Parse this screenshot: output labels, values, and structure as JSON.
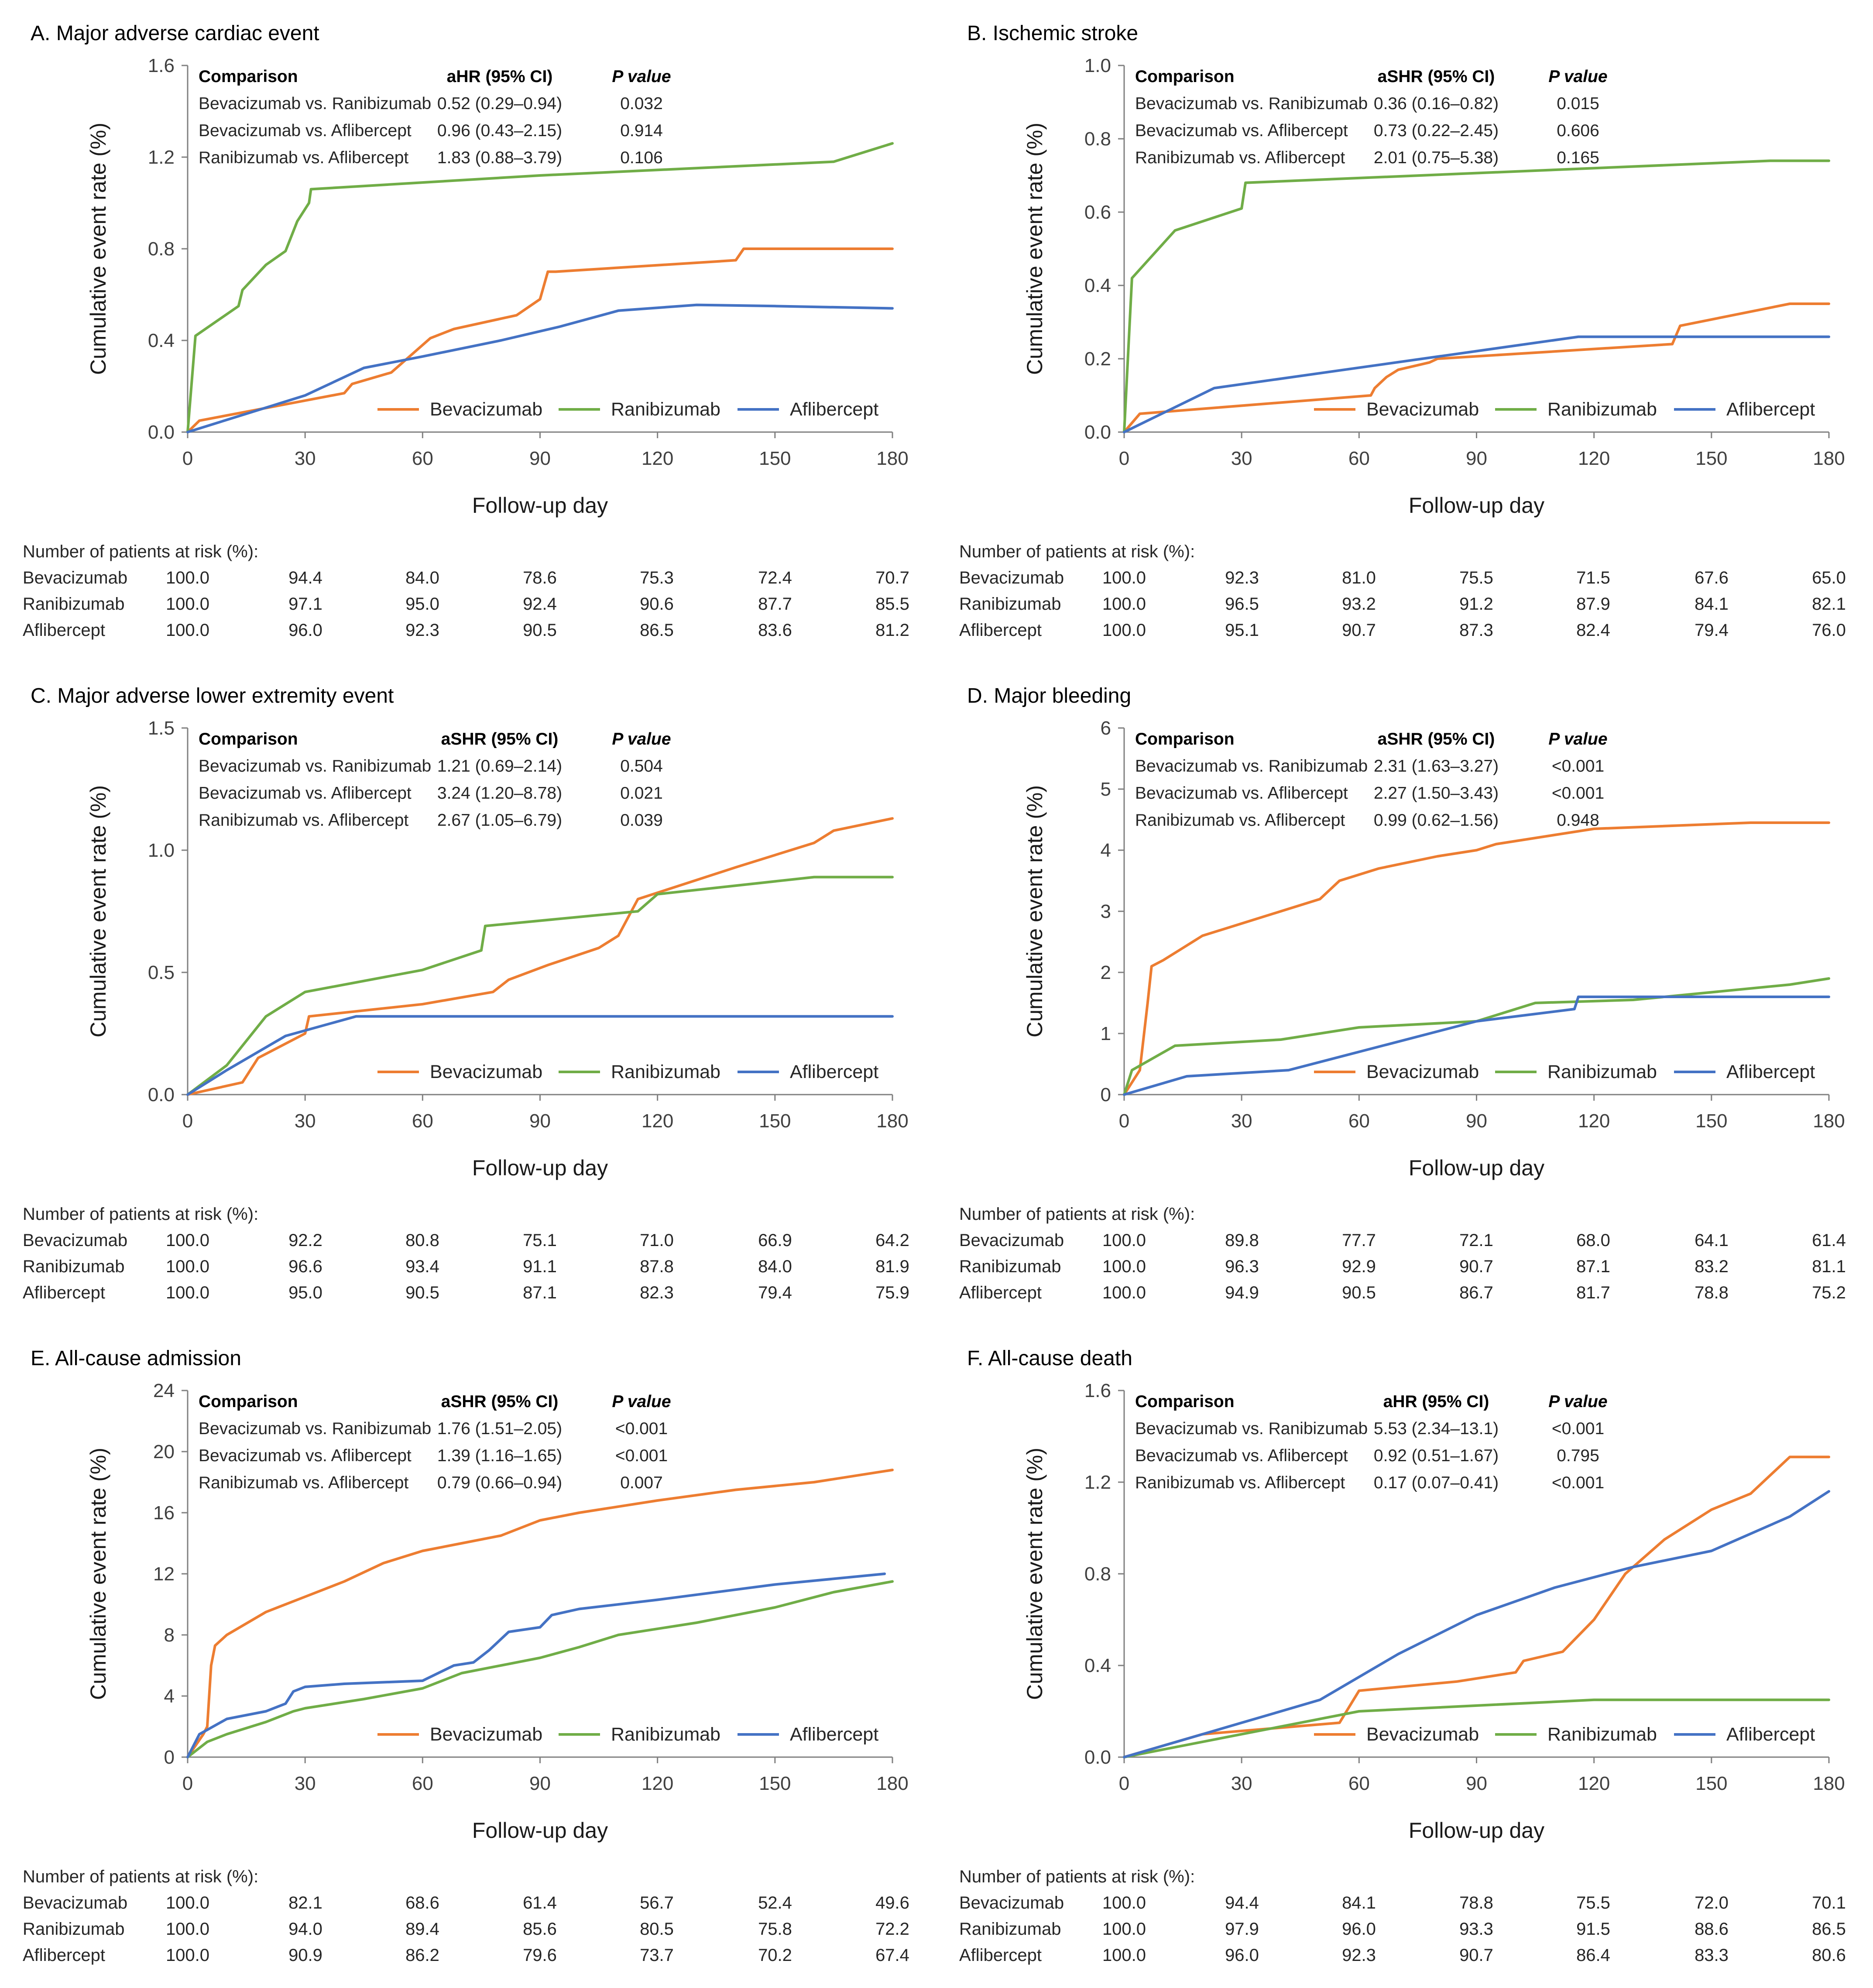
{
  "colors": {
    "Bevacizumab": "#ED7D31",
    "Ranibizumab": "#70AD47",
    "Aflibercept": "#4472C4",
    "axis": "#808080"
  },
  "common": {
    "xlabel": "Follow-up day",
    "ylabel": "Cumulative event rate (%)",
    "x_ticks": [
      "0",
      "30",
      "60",
      "90",
      "120",
      "150",
      "180"
    ],
    "risk_label": "Number of patients at risk (%):",
    "cmp_header": {
      "comparison": "Comparison",
      "p": "P value"
    }
  },
  "chart_data": [
    {
      "id": "A",
      "type": "line",
      "title": "A. Major adverse cardiac event",
      "xlabel": "Follow-up day",
      "ylabel": "Cumulative event rate (%)",
      "xlim": [
        0,
        180
      ],
      "ylim": [
        0,
        1.6
      ],
      "y_ticks": [
        "0.0",
        "0.4",
        "0.8",
        "1.2",
        "1.6"
      ],
      "stat_label": "aHR (95% CI)",
      "comparisons": [
        {
          "comparison": "Bevacizumab vs. Ranibizumab",
          "ci": "0.52 (0.29–0.94)",
          "p": "0.032"
        },
        {
          "comparison": "Bevacizumab vs. Aflibercept",
          "ci": "0.96 (0.43–2.15)",
          "p": "0.914"
        },
        {
          "comparison": "Ranibizumab vs. Aflibercept",
          "ci": "1.83 (0.88–3.79)",
          "p": "0.106"
        }
      ],
      "series": [
        {
          "name": "Bevacizumab",
          "x": [
            0,
            3,
            40,
            42,
            52,
            62,
            68,
            84,
            90,
            92,
            94,
            140,
            142,
            180
          ],
          "y": [
            0,
            0.05,
            0.17,
            0.21,
            0.26,
            0.41,
            0.45,
            0.51,
            0.58,
            0.7,
            0.7,
            0.75,
            0.8,
            0.8
          ]
        },
        {
          "name": "Ranibizumab",
          "x": [
            0,
            2,
            13,
            14,
            20,
            25,
            28,
            31,
            31.5,
            90,
            165,
            180
          ],
          "y": [
            0,
            0.42,
            0.55,
            0.62,
            0.73,
            0.79,
            0.92,
            1.0,
            1.06,
            1.12,
            1.18,
            1.26
          ]
        },
        {
          "name": "Aflibercept",
          "x": [
            0,
            30,
            45,
            60,
            80,
            95,
            110,
            130,
            150,
            180
          ],
          "y": [
            0,
            0.16,
            0.28,
            0.33,
            0.4,
            0.46,
            0.53,
            0.555,
            0.55,
            0.54
          ]
        }
      ],
      "risk": [
        {
          "name": "Bevacizumab",
          "values": [
            "100.0",
            "94.4",
            "84.0",
            "78.6",
            "75.3",
            "72.4",
            "70.7"
          ]
        },
        {
          "name": "Ranibizumab",
          "values": [
            "100.0",
            "97.1",
            "95.0",
            "92.4",
            "90.6",
            "87.7",
            "85.5"
          ]
        },
        {
          "name": "Aflibercept",
          "values": [
            "100.0",
            "96.0",
            "92.3",
            "90.5",
            "86.5",
            "83.6",
            "81.2"
          ]
        }
      ]
    },
    {
      "id": "B",
      "type": "line",
      "title": "B. Ischemic stroke",
      "xlabel": "Follow-up day",
      "ylabel": "Cumulative event rate (%)",
      "xlim": [
        0,
        180
      ],
      "ylim": [
        0,
        1.0
      ],
      "y_ticks": [
        "0.0",
        "0.2",
        "0.4",
        "0.6",
        "0.8",
        "1.0"
      ],
      "stat_label": "aSHR (95% CI)",
      "comparisons": [
        {
          "comparison": "Bevacizumab vs. Ranibizumab",
          "ci": "0.36 (0.16–0.82)",
          "p": "0.015"
        },
        {
          "comparison": "Bevacizumab vs. Aflibercept",
          "ci": "0.73 (0.22–2.45)",
          "p": "0.606"
        },
        {
          "comparison": "Ranibizumab vs. Aflibercept",
          "ci": "2.01 (0.75–5.38)",
          "p": "0.165"
        }
      ],
      "series": [
        {
          "name": "Bevacizumab",
          "x": [
            0,
            4,
            63,
            64,
            67,
            70,
            78,
            80,
            140,
            142,
            170,
            180
          ],
          "y": [
            0,
            0.05,
            0.1,
            0.12,
            0.15,
            0.17,
            0.19,
            0.2,
            0.24,
            0.29,
            0.35,
            0.35
          ]
        },
        {
          "name": "Ranibizumab",
          "x": [
            0,
            2,
            13,
            30,
            31,
            165,
            180
          ],
          "y": [
            0,
            0.42,
            0.55,
            0.61,
            0.68,
            0.74,
            0.74
          ]
        },
        {
          "name": "Aflibercept",
          "x": [
            0,
            23,
            116,
            180
          ],
          "y": [
            0,
            0.12,
            0.26,
            0.26
          ]
        }
      ],
      "risk": [
        {
          "name": "Bevacizumab",
          "values": [
            "100.0",
            "92.3",
            "81.0",
            "75.5",
            "71.5",
            "67.6",
            "65.0"
          ]
        },
        {
          "name": "Ranibizumab",
          "values": [
            "100.0",
            "96.5",
            "93.2",
            "91.2",
            "87.9",
            "84.1",
            "82.1"
          ]
        },
        {
          "name": "Aflibercept",
          "values": [
            "100.0",
            "95.1",
            "90.7",
            "87.3",
            "82.4",
            "79.4",
            "76.0"
          ]
        }
      ]
    },
    {
      "id": "C",
      "type": "line",
      "title": "C. Major adverse lower extremity event",
      "xlabel": "Follow-up day",
      "ylabel": "Cumulative event rate (%)",
      "xlim": [
        0,
        180
      ],
      "ylim": [
        0,
        1.5
      ],
      "y_ticks": [
        "0.0",
        "0.5",
        "1.0",
        "1.5"
      ],
      "stat_label": "aSHR (95% CI)",
      "comparisons": [
        {
          "comparison": "Bevacizumab vs. Ranibizumab",
          "ci": "1.21 (0.69–2.14)",
          "p": "0.504"
        },
        {
          "comparison": "Bevacizumab vs. Aflibercept",
          "ci": "3.24 (1.20–8.78)",
          "p": "0.021"
        },
        {
          "comparison": "Ranibizumab vs. Aflibercept",
          "ci": "2.67 (1.05–6.79)",
          "p": "0.039"
        }
      ],
      "series": [
        {
          "name": "Bevacizumab",
          "x": [
            0,
            14,
            18,
            30,
            31,
            60,
            78,
            82,
            92,
            105,
            110,
            115,
            140,
            160,
            165,
            180
          ],
          "y": [
            0,
            0.05,
            0.15,
            0.25,
            0.32,
            0.37,
            0.42,
            0.47,
            0.53,
            0.6,
            0.65,
            0.8,
            0.93,
            1.03,
            1.08,
            1.13
          ]
        },
        {
          "name": "Ranibizumab",
          "x": [
            0,
            10,
            20,
            30,
            60,
            75,
            76,
            115,
            120,
            160,
            180
          ],
          "y": [
            0,
            0.12,
            0.32,
            0.42,
            0.51,
            0.59,
            0.69,
            0.75,
            0.82,
            0.89,
            0.89
          ]
        },
        {
          "name": "Aflibercept",
          "x": [
            0,
            10,
            25,
            43,
            180
          ],
          "y": [
            0,
            0.1,
            0.24,
            0.32,
            0.32
          ]
        }
      ],
      "risk": [
        {
          "name": "Bevacizumab",
          "values": [
            "100.0",
            "92.2",
            "80.8",
            "75.1",
            "71.0",
            "66.9",
            "64.2"
          ]
        },
        {
          "name": "Ranibizumab",
          "values": [
            "100.0",
            "96.6",
            "93.4",
            "91.1",
            "87.8",
            "84.0",
            "81.9"
          ]
        },
        {
          "name": "Aflibercept",
          "values": [
            "100.0",
            "95.0",
            "90.5",
            "87.1",
            "82.3",
            "79.4",
            "75.9"
          ]
        }
      ]
    },
    {
      "id": "D",
      "type": "line",
      "title": "D. Major bleeding",
      "xlabel": "Follow-up day",
      "ylabel": "Cumulative event rate (%)",
      "xlim": [
        0,
        180
      ],
      "ylim": [
        0,
        6
      ],
      "y_ticks": [
        "0",
        "1",
        "2",
        "3",
        "4",
        "5",
        "6"
      ],
      "stat_label": "aSHR (95% CI)",
      "comparisons": [
        {
          "comparison": "Bevacizumab vs. Ranibizumab",
          "ci": "2.31 (1.63–3.27)",
          "p": "<0.001"
        },
        {
          "comparison": "Bevacizumab vs. Aflibercept",
          "ci": "2.27 (1.50–3.43)",
          "p": "<0.001"
        },
        {
          "comparison": "Ranibizumab vs. Aflibercept",
          "ci": "0.99 (0.62–1.56)",
          "p": "0.948"
        }
      ],
      "series": [
        {
          "name": "Bevacizumab",
          "x": [
            0,
            4,
            6,
            7,
            10,
            15,
            20,
            30,
            40,
            50,
            55,
            65,
            80,
            90,
            95,
            120,
            160,
            180
          ],
          "y": [
            0,
            0.4,
            1.5,
            2.1,
            2.2,
            2.4,
            2.6,
            2.8,
            3.0,
            3.2,
            3.5,
            3.7,
            3.9,
            4.0,
            4.1,
            4.35,
            4.45,
            4.45
          ]
        },
        {
          "name": "Ranibizumab",
          "x": [
            0,
            2,
            13,
            40,
            60,
            90,
            105,
            130,
            170,
            180
          ],
          "y": [
            0,
            0.4,
            0.8,
            0.9,
            1.1,
            1.2,
            1.5,
            1.55,
            1.8,
            1.9
          ]
        },
        {
          "name": "Aflibercept",
          "x": [
            0,
            16,
            42,
            60,
            90,
            115,
            116,
            180
          ],
          "y": [
            0,
            0.3,
            0.4,
            0.7,
            1.2,
            1.4,
            1.6,
            1.6
          ]
        }
      ],
      "risk": [
        {
          "name": "Bevacizumab",
          "values": [
            "100.0",
            "89.8",
            "77.7",
            "72.1",
            "68.0",
            "64.1",
            "61.4"
          ]
        },
        {
          "name": "Ranibizumab",
          "values": [
            "100.0",
            "96.3",
            "92.9",
            "90.7",
            "87.1",
            "83.2",
            "81.1"
          ]
        },
        {
          "name": "Aflibercept",
          "values": [
            "100.0",
            "94.9",
            "90.5",
            "86.7",
            "81.7",
            "78.8",
            "75.2"
          ]
        }
      ]
    },
    {
      "id": "E",
      "type": "line",
      "title": "E. All-cause admission",
      "xlabel": "Follow-up day",
      "ylabel": "Cumulative event rate (%)",
      "xlim": [
        0,
        180
      ],
      "ylim": [
        0,
        24
      ],
      "y_ticks": [
        "0",
        "4",
        "8",
        "12",
        "16",
        "20",
        "24"
      ],
      "stat_label": "aSHR (95% CI)",
      "comparisons": [
        {
          "comparison": "Bevacizumab vs. Ranibizumab",
          "ci": "1.76 (1.51–2.05)",
          "p": "<0.001"
        },
        {
          "comparison": "Bevacizumab vs. Aflibercept",
          "ci": "1.39 (1.16–1.65)",
          "p": "<0.001"
        },
        {
          "comparison": "Ranibizumab vs. Aflibercept",
          "ci": "0.79 (0.66–0.94)",
          "p": "0.007"
        }
      ],
      "series": [
        {
          "name": "Bevacizumab",
          "x": [
            0,
            4,
            5,
            6,
            7,
            10,
            20,
            30,
            40,
            50,
            60,
            70,
            80,
            90,
            100,
            120,
            140,
            160,
            180
          ],
          "y": [
            0,
            1.5,
            2.0,
            6.0,
            7.3,
            8.0,
            9.5,
            10.5,
            11.5,
            12.7,
            13.5,
            14.0,
            14.5,
            15.5,
            16.0,
            16.8,
            17.5,
            18.0,
            18.8
          ]
        },
        {
          "name": "Ranibizumab",
          "x": [
            0,
            5,
            10,
            20,
            27,
            30,
            45,
            60,
            70,
            80,
            90,
            100,
            110,
            130,
            150,
            165,
            180
          ],
          "y": [
            0,
            1.0,
            1.5,
            2.3,
            3.0,
            3.2,
            3.8,
            4.5,
            5.5,
            6.0,
            6.5,
            7.2,
            8.0,
            8.8,
            9.8,
            10.8,
            11.5
          ]
        },
        {
          "name": "Aflibercept",
          "x": [
            0,
            3,
            10,
            20,
            25,
            27,
            30,
            40,
            60,
            68,
            73,
            77,
            82,
            90,
            93,
            100,
            120,
            150,
            178
          ],
          "y": [
            0,
            1.5,
            2.5,
            3.0,
            3.5,
            4.3,
            4.6,
            4.8,
            5.0,
            6.0,
            6.2,
            7.0,
            8.2,
            8.5,
            9.3,
            9.7,
            10.3,
            11.3,
            12.0
          ]
        }
      ],
      "risk": [
        {
          "name": "Bevacizumab",
          "values": [
            "100.0",
            "82.1",
            "68.6",
            "61.4",
            "56.7",
            "52.4",
            "49.6"
          ]
        },
        {
          "name": "Ranibizumab",
          "values": [
            "100.0",
            "94.0",
            "89.4",
            "85.6",
            "80.5",
            "75.8",
            "72.2"
          ]
        },
        {
          "name": "Aflibercept",
          "values": [
            "100.0",
            "90.9",
            "86.2",
            "79.6",
            "73.7",
            "70.2",
            "67.4"
          ]
        }
      ]
    },
    {
      "id": "F",
      "type": "line",
      "title": "F. All-cause death",
      "xlabel": "Follow-up day",
      "ylabel": "Cumulative event rate (%)",
      "xlim": [
        0,
        180
      ],
      "ylim": [
        0,
        1.6
      ],
      "y_ticks": [
        "0.0",
        "0.4",
        "0.8",
        "1.2",
        "1.6"
      ],
      "stat_label": "aHR (95% CI)",
      "comparisons": [
        {
          "comparison": "Bevacizumab vs. Ranibizumab",
          "ci": "5.53 (2.34–13.1)",
          "p": "<0.001"
        },
        {
          "comparison": "Bevacizumab vs. Aflibercept",
          "ci": "0.92 (0.51–1.67)",
          "p": "0.795"
        },
        {
          "comparison": "Ranibizumab vs. Aflibercept",
          "ci": "0.17 (0.07–0.41)",
          "p": "<0.001"
        }
      ],
      "series": [
        {
          "name": "Bevacizumab",
          "x": [
            0,
            20,
            55,
            60,
            85,
            100,
            102,
            112,
            120,
            128,
            138,
            150,
            160,
            170,
            180
          ],
          "y": [
            0,
            0.1,
            0.15,
            0.29,
            0.33,
            0.37,
            0.42,
            0.46,
            0.6,
            0.8,
            0.95,
            1.08,
            1.15,
            1.31,
            1.31
          ]
        },
        {
          "name": "Ranibizumab",
          "x": [
            0,
            60,
            120,
            180
          ],
          "y": [
            0,
            0.2,
            0.25,
            0.25
          ]
        },
        {
          "name": "Aflibercept",
          "x": [
            0,
            30,
            50,
            70,
            90,
            110,
            130,
            150,
            170,
            180
          ],
          "y": [
            0,
            0.15,
            0.25,
            0.45,
            0.62,
            0.74,
            0.83,
            0.9,
            1.05,
            1.16
          ]
        }
      ],
      "risk": [
        {
          "name": "Bevacizumab",
          "values": [
            "100.0",
            "94.4",
            "84.1",
            "78.8",
            "75.5",
            "72.0",
            "70.1"
          ]
        },
        {
          "name": "Ranibizumab",
          "values": [
            "100.0",
            "97.9",
            "96.0",
            "93.3",
            "91.5",
            "88.6",
            "86.5"
          ]
        },
        {
          "name": "Aflibercept",
          "values": [
            "100.0",
            "96.0",
            "92.3",
            "90.7",
            "86.4",
            "83.3",
            "80.6"
          ]
        }
      ]
    }
  ]
}
